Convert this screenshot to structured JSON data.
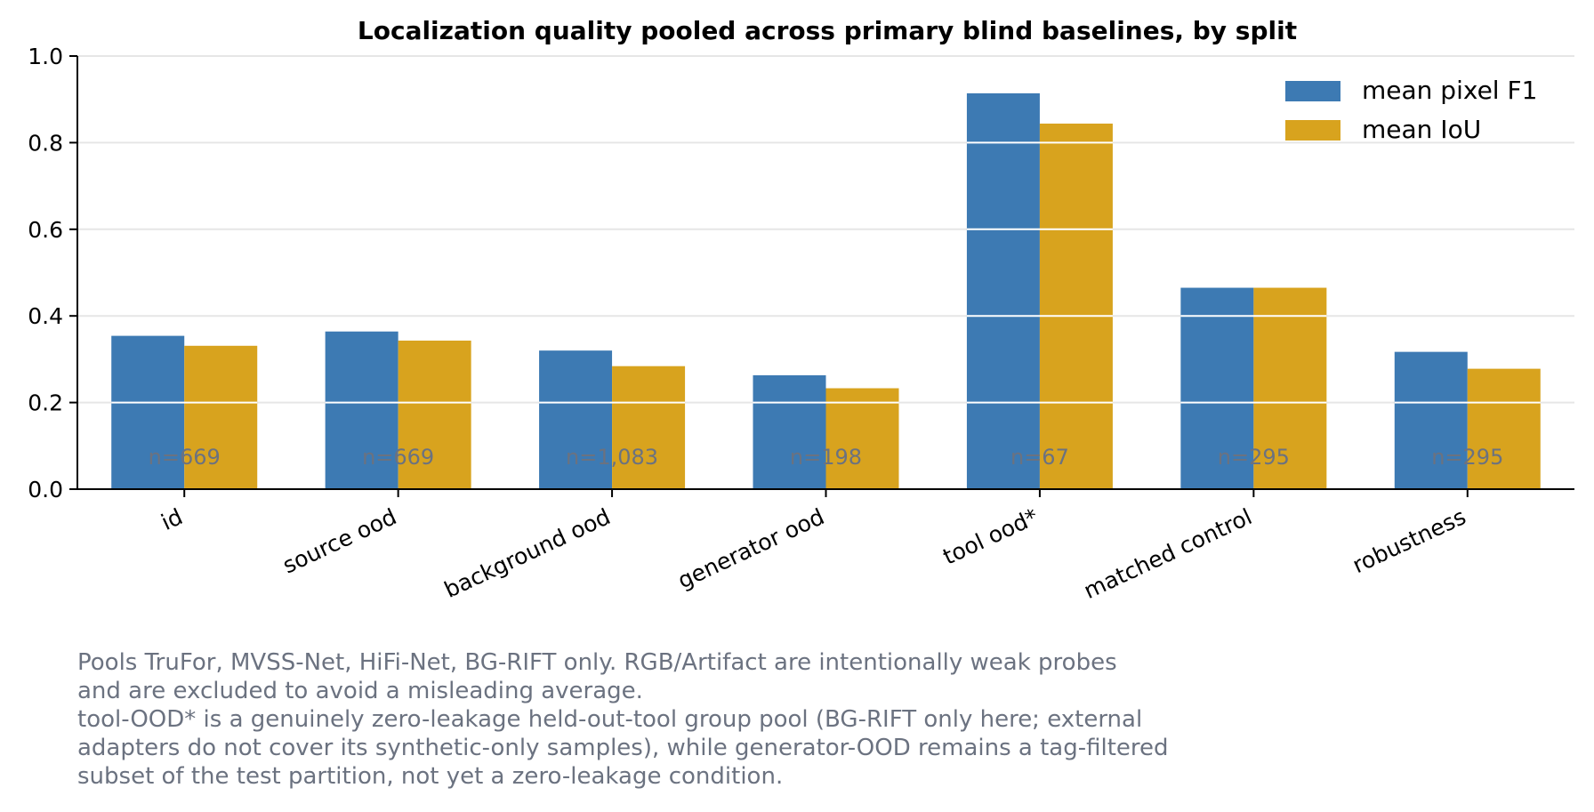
{
  "chart_data": {
    "type": "bar",
    "title": "Localization quality pooled across primary blind baselines, by split",
    "xlabel": "",
    "ylabel": "",
    "categories": [
      "id",
      "source ood",
      "background ood",
      "generator ood",
      "tool ood*",
      "matched control",
      "robustness"
    ],
    "series": [
      {
        "name": "mean pixel F1",
        "color": "#3d7ab3",
        "values": [
          0.354,
          0.364,
          0.32,
          0.263,
          0.914,
          0.465,
          0.317
        ]
      },
      {
        "name": "mean IoU",
        "color": "#d8a31e",
        "values": [
          0.331,
          0.343,
          0.284,
          0.233,
          0.844,
          0.465,
          0.278
        ]
      }
    ],
    "count_labels": [
      "n=669",
      "n=669",
      "n=1,083",
      "n=198",
      "n=67",
      "n=295",
      "n=295"
    ],
    "ylim": [
      0,
      1.0
    ],
    "yticks": [
      "0.0",
      "0.2",
      "0.4",
      "0.6",
      "0.8",
      "1.0"
    ],
    "ytick_values": [
      0,
      0.2,
      0.4,
      0.6,
      0.8,
      1.0
    ],
    "grid": "horizontal",
    "legend_position": "top-right"
  },
  "caption": {
    "lines": [
      "Pools TruFor, MVSS-Net, HiFi-Net, BG-RIFT only. RGB/Artifact are intentionally weak probes",
      "and are excluded to avoid a misleading average.",
      "tool-OOD* is a genuinely zero-leakage held-out-tool group pool (BG-RIFT only here; external",
      "adapters do not cover its synthetic-only samples), while generator-OOD remains a tag-filtered",
      "subset of the test partition, not yet a zero-leakage condition."
    ]
  }
}
